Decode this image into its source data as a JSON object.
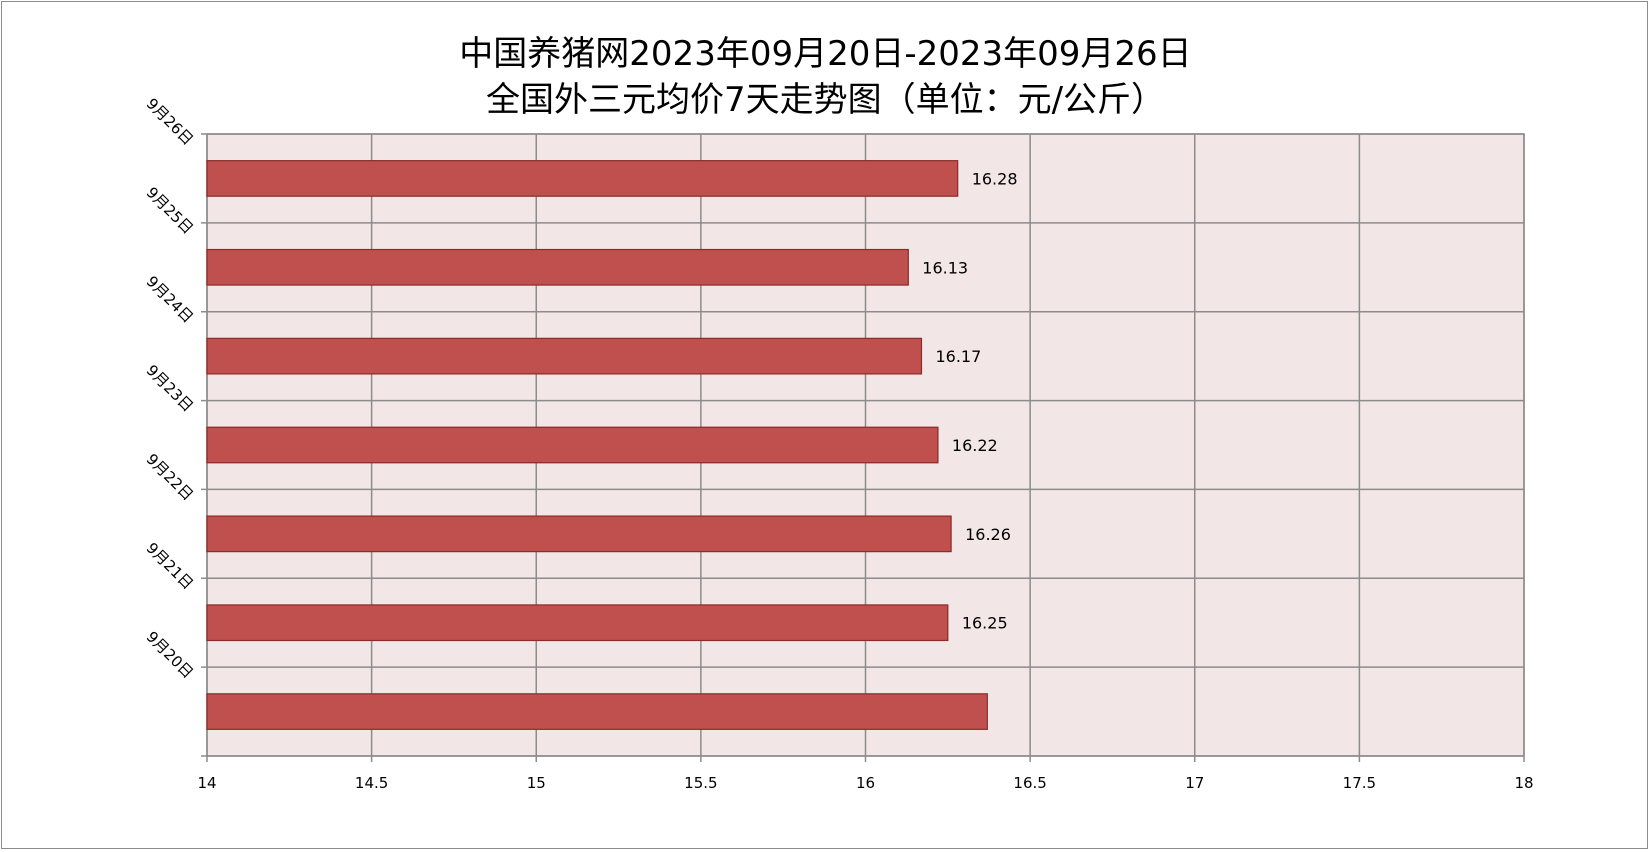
{
  "chart_data": {
    "type": "bar",
    "orientation": "horizontal",
    "title_line1": "中国养猪网2023年09月20日-2023年09月26日",
    "title_line2": "全国外三元均价7天走势图（单位：元/公斤）",
    "categories": [
      "9月20日",
      "9月21日",
      "9月22日",
      "9月23日",
      "9月24日",
      "9月25日",
      "9月26日"
    ],
    "values": [
      16.37,
      16.25,
      16.26,
      16.22,
      16.17,
      16.13,
      16.28
    ],
    "data_labels": [
      "",
      "16.25",
      "16.26",
      "16.22",
      "16.17",
      "16.13",
      "16.28"
    ],
    "xlim": [
      14,
      18
    ],
    "x_ticks": [
      "14",
      "14.5",
      "15",
      "15.5",
      "16",
      "16.5",
      "17",
      "17.5",
      "18"
    ],
    "grid": true,
    "legend": "none",
    "colors": {
      "bar_fill": "#c0504d",
      "bar_stroke": "#8b2b28",
      "plot_bg": "#f2e6e6",
      "grid": "#8c8c8c"
    }
  }
}
